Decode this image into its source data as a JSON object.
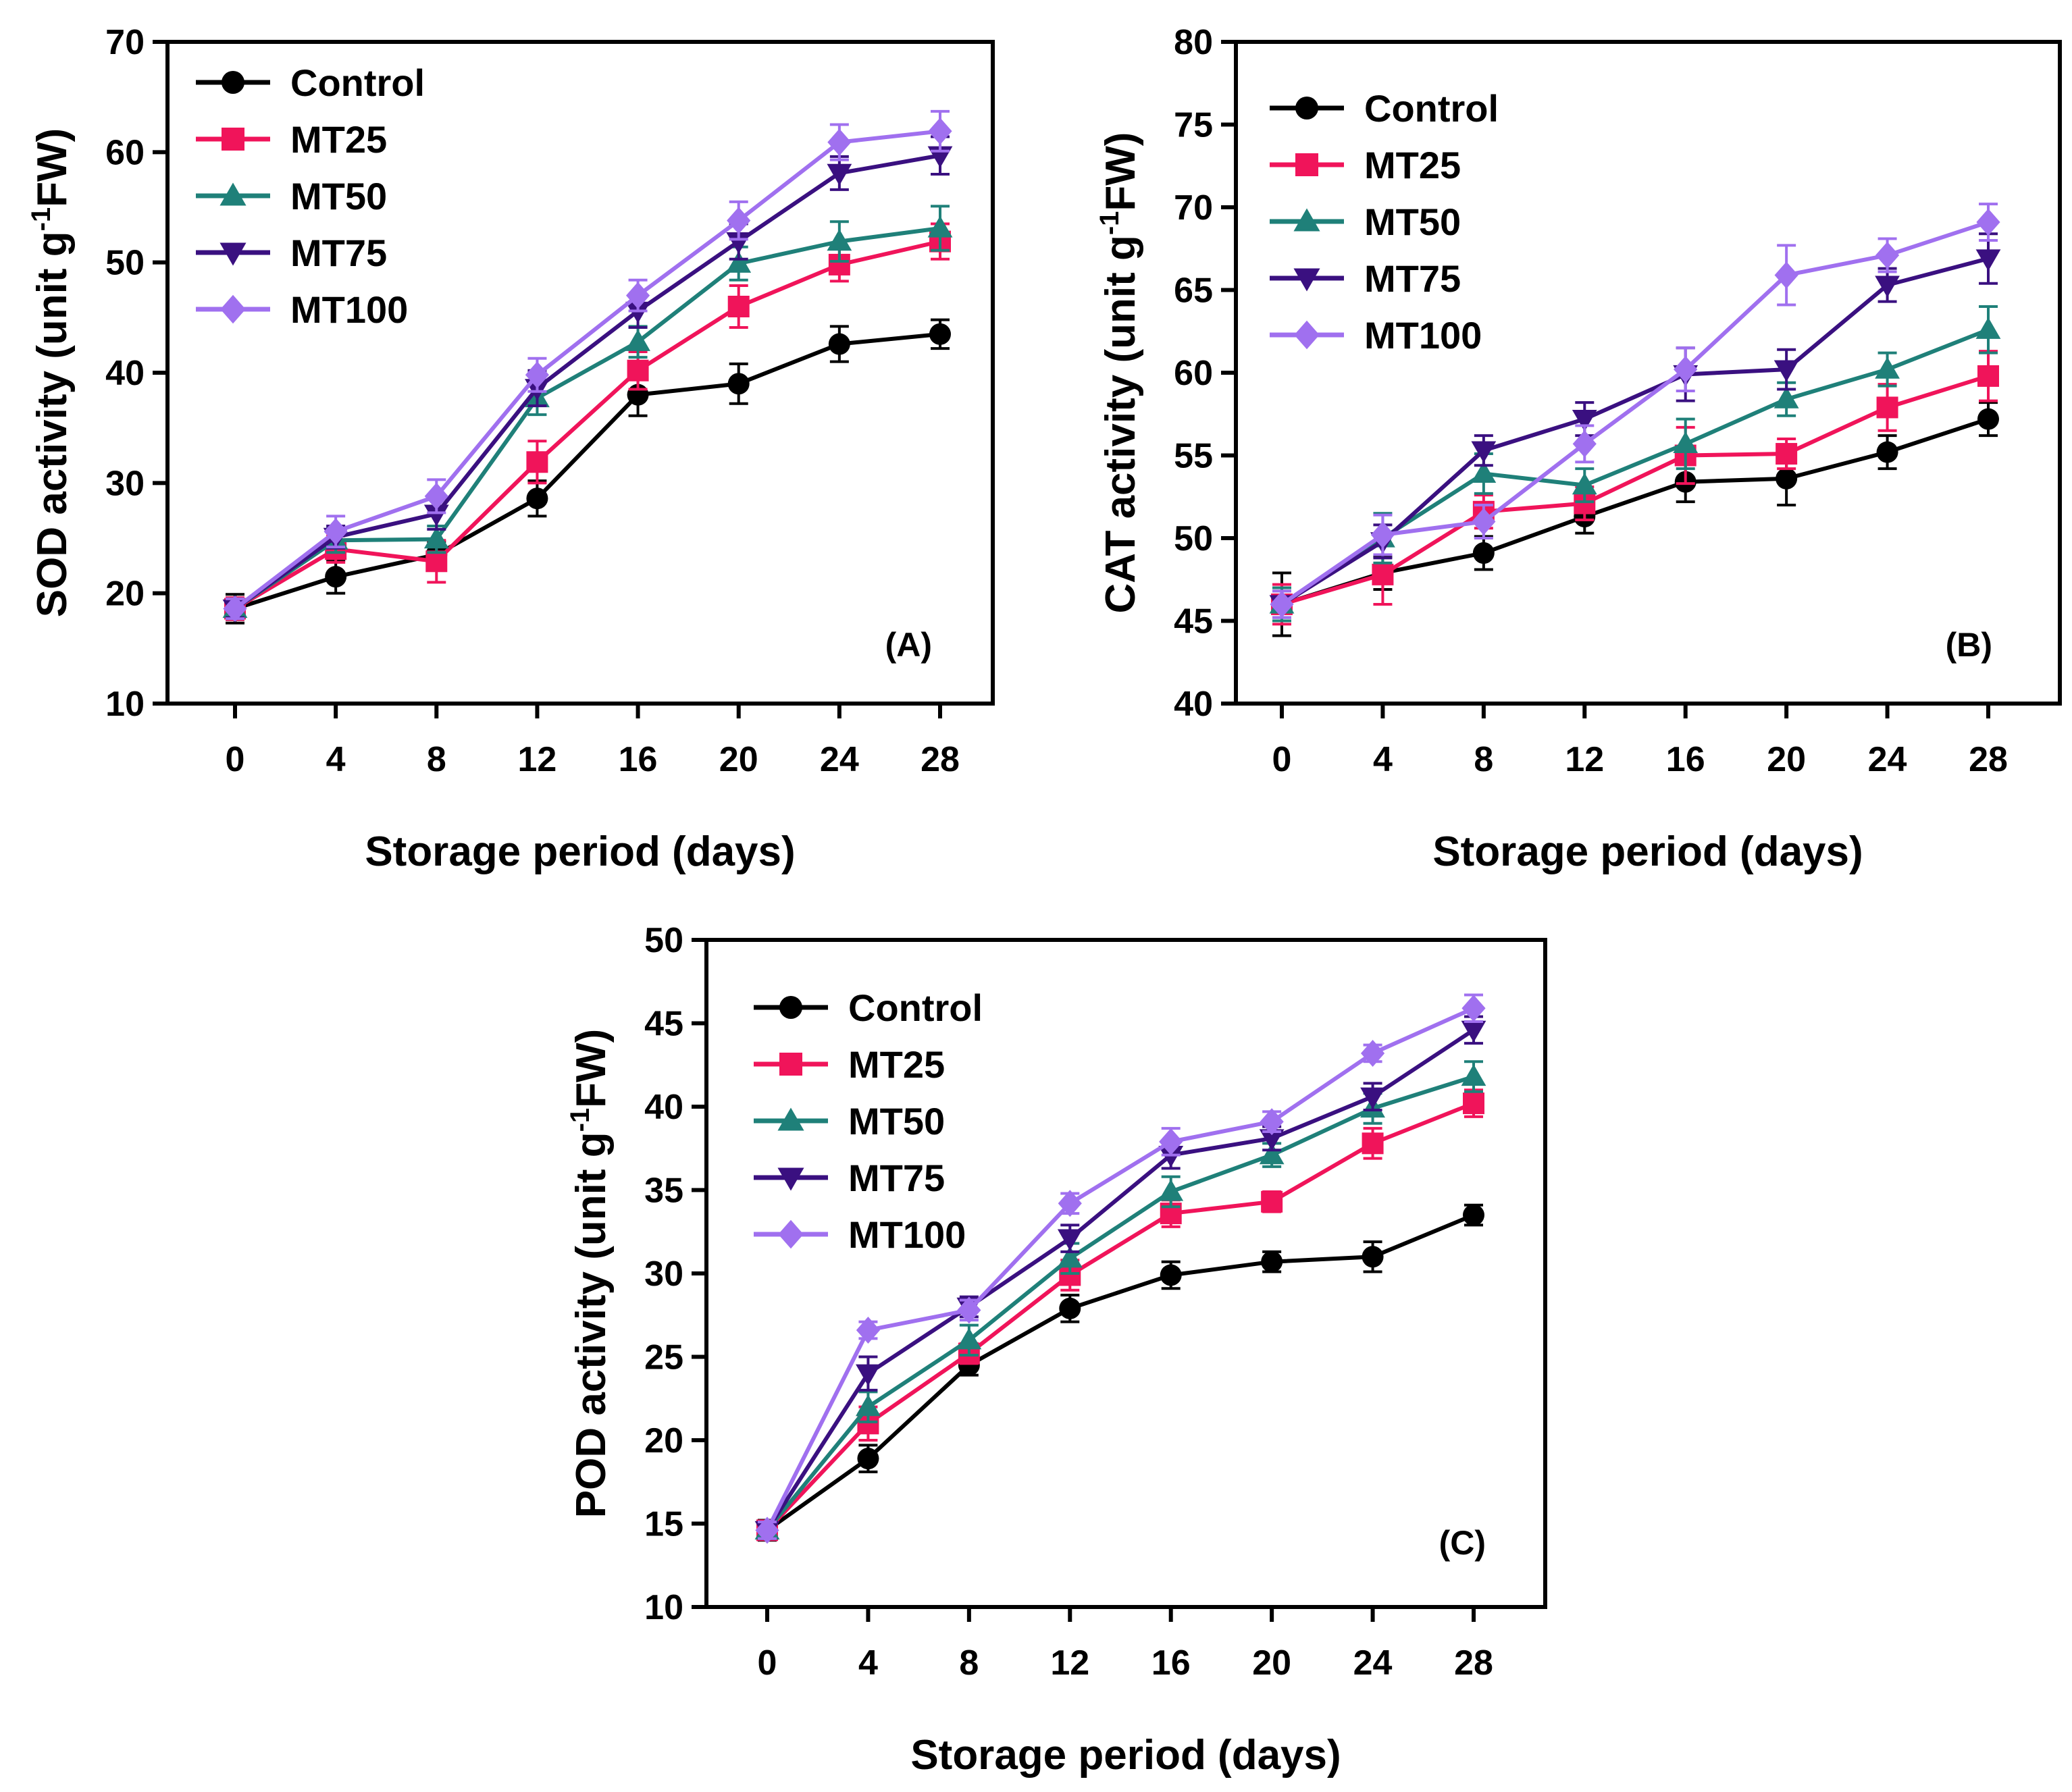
{
  "chart_data": [
    {
      "type": "line",
      "panel_label": "(A)",
      "title": "",
      "xlabel": "Storage period (days)",
      "ylabel_main": "SOD activity (unit g",
      "ylabel_sup": "-1",
      "ylabel_tail": "FW)",
      "x": [
        0,
        4,
        8,
        12,
        16,
        20,
        24,
        28
      ],
      "x_tick_labels": [
        "0",
        "4",
        "8",
        "12",
        "16",
        "20",
        "24",
        "28"
      ],
      "ylim": [
        10,
        70
      ],
      "y_ticks": [
        10,
        20,
        30,
        40,
        50,
        60,
        70
      ],
      "y_tick_labels": [
        "10",
        "20",
        "30",
        "40",
        "50",
        "60",
        "70"
      ],
      "legend_position": "top-left",
      "series": [
        {
          "name": "Control",
          "color": "#000000",
          "marker": "circle",
          "values": [
            18.6,
            21.5,
            23.5,
            28.6,
            38.0,
            39.0,
            42.6,
            43.5
          ],
          "errors": [
            1.3,
            1.5,
            1.2,
            1.6,
            1.9,
            1.8,
            1.6,
            1.3
          ]
        },
        {
          "name": "MT25",
          "color": "#f0145a",
          "marker": "square",
          "values": [
            18.6,
            24.0,
            22.9,
            31.9,
            40.2,
            46.0,
            49.8,
            51.9
          ],
          "errors": [
            1.0,
            1.2,
            1.9,
            1.9,
            1.7,
            1.9,
            1.5,
            1.6
          ]
        },
        {
          "name": "MT50",
          "color": "#1f8079",
          "marker": "triangle-up",
          "values": [
            18.6,
            24.8,
            24.9,
            37.7,
            42.8,
            49.9,
            51.9,
            53.1
          ],
          "errors": [
            0.9,
            1.1,
            1.2,
            1.5,
            1.4,
            1.5,
            1.8,
            2.0
          ]
        },
        {
          "name": "MT75",
          "color": "#3a1080",
          "marker": "triangle-down",
          "values": [
            18.6,
            25.1,
            27.2,
            38.6,
            45.6,
            51.9,
            58.1,
            59.7
          ],
          "errors": [
            0.8,
            1.0,
            1.4,
            1.6,
            1.5,
            1.6,
            1.5,
            1.7
          ]
        },
        {
          "name": "MT100",
          "color": "#a070ef",
          "marker": "diamond",
          "values": [
            18.6,
            25.6,
            28.8,
            39.8,
            47.0,
            53.8,
            60.9,
            61.9
          ],
          "errors": [
            0.9,
            1.4,
            1.5,
            1.5,
            1.4,
            1.7,
            1.6,
            1.8
          ]
        }
      ]
    },
    {
      "type": "line",
      "panel_label": "(B)",
      "title": "",
      "xlabel": "Storage period (days)",
      "ylabel_main": "CAT activity (unit g",
      "ylabel_sup": "-1",
      "ylabel_tail": "FW)",
      "x": [
        0,
        4,
        8,
        12,
        16,
        20,
        24,
        28
      ],
      "x_tick_labels": [
        "0",
        "4",
        "8",
        "12",
        "16",
        "20",
        "24",
        "28"
      ],
      "ylim": [
        40,
        80
      ],
      "y_ticks": [
        40,
        45,
        50,
        55,
        60,
        65,
        70,
        75,
        80
      ],
      "y_tick_labels": [
        "40",
        "45",
        "50",
        "55",
        "60",
        "65",
        "70",
        "75",
        "80"
      ],
      "legend_position": "top-left",
      "series": [
        {
          "name": "Control",
          "color": "#000000",
          "marker": "circle",
          "values": [
            46.0,
            47.9,
            49.1,
            51.3,
            53.4,
            53.6,
            55.2,
            57.2
          ],
          "errors": [
            1.9,
            1.0,
            1.0,
            1.0,
            1.2,
            1.6,
            1.0,
            1.0
          ]
        },
        {
          "name": "MT25",
          "color": "#f0145a",
          "marker": "square",
          "values": [
            46.0,
            47.8,
            51.6,
            52.1,
            55.0,
            55.1,
            57.9,
            59.8
          ],
          "errors": [
            1.2,
            1.8,
            1.0,
            1.0,
            1.7,
            0.9,
            1.4,
            1.5
          ]
        },
        {
          "name": "MT50",
          "color": "#1f8079",
          "marker": "triangle-up",
          "values": [
            46.0,
            50.0,
            53.9,
            53.2,
            55.7,
            58.4,
            60.2,
            62.6
          ],
          "errors": [
            1.0,
            1.5,
            1.2,
            1.0,
            1.5,
            1.0,
            1.0,
            1.4
          ]
        },
        {
          "name": "MT75",
          "color": "#3a1080",
          "marker": "triangle-down",
          "values": [
            46.0,
            49.8,
            55.3,
            57.2,
            59.9,
            60.2,
            65.3,
            66.9
          ],
          "errors": [
            0.8,
            1.0,
            0.9,
            1.0,
            1.6,
            1.2,
            1.0,
            1.5
          ]
        },
        {
          "name": "MT100",
          "color": "#a070ef",
          "marker": "diamond",
          "values": [
            46.0,
            50.2,
            51.0,
            55.7,
            60.2,
            65.9,
            67.1,
            69.1
          ],
          "errors": [
            0.8,
            1.2,
            1.0,
            1.1,
            1.3,
            1.8,
            1.0,
            1.1
          ]
        }
      ]
    },
    {
      "type": "line",
      "panel_label": "(C)",
      "title": "",
      "xlabel": "Storage period (days)",
      "ylabel_main": "POD activity (unit g",
      "ylabel_sup": "-1",
      "ylabel_tail": "FW)",
      "x": [
        0,
        4,
        8,
        12,
        16,
        20,
        24,
        28
      ],
      "x_tick_labels": [
        "0",
        "4",
        "8",
        "12",
        "16",
        "20",
        "24",
        "28"
      ],
      "ylim": [
        10,
        50
      ],
      "y_ticks": [
        10,
        15,
        20,
        25,
        30,
        35,
        40,
        45,
        50
      ],
      "y_tick_labels": [
        "10",
        "15",
        "20",
        "25",
        "30",
        "35",
        "40",
        "45",
        "50"
      ],
      "legend_position": "top-left",
      "series": [
        {
          "name": "Control",
          "color": "#000000",
          "marker": "circle",
          "values": [
            14.6,
            18.9,
            24.5,
            27.9,
            29.9,
            30.7,
            31.0,
            33.5
          ],
          "errors": [
            0.6,
            0.8,
            0.6,
            0.8,
            0.8,
            0.6,
            0.9,
            0.6
          ]
        },
        {
          "name": "MT25",
          "color": "#f0145a",
          "marker": "square",
          "values": [
            14.6,
            21.0,
            25.2,
            29.9,
            33.6,
            34.3,
            37.8,
            40.2
          ],
          "errors": [
            0.5,
            1.0,
            0.6,
            0.9,
            0.8,
            0.6,
            0.9,
            0.8
          ]
        },
        {
          "name": "MT50",
          "color": "#1f8079",
          "marker": "triangle-up",
          "values": [
            14.6,
            22.0,
            26.0,
            30.9,
            34.9,
            37.1,
            39.9,
            41.8
          ],
          "errors": [
            0.5,
            0.9,
            0.9,
            0.9,
            0.9,
            0.7,
            0.9,
            0.9
          ]
        },
        {
          "name": "MT75",
          "color": "#3a1080",
          "marker": "triangle-down",
          "values": [
            14.6,
            24.0,
            28.0,
            32.1,
            37.1,
            38.1,
            40.6,
            44.6
          ],
          "errors": [
            0.5,
            1.0,
            0.6,
            0.8,
            0.8,
            0.7,
            0.8,
            0.8
          ]
        },
        {
          "name": "MT100",
          "color": "#a070ef",
          "marker": "diamond",
          "values": [
            14.6,
            26.6,
            27.8,
            34.2,
            37.9,
            39.1,
            43.2,
            45.9
          ],
          "errors": [
            0.5,
            0.5,
            0.6,
            0.6,
            0.8,
            0.6,
            0.5,
            0.8
          ]
        }
      ]
    }
  ]
}
